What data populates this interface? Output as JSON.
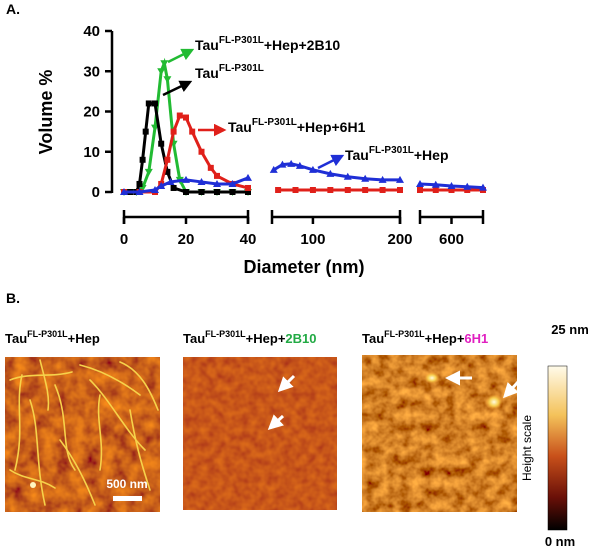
{
  "chart_data": {
    "type": "line",
    "panel_label": "A.",
    "ylabel": "Volume %",
    "xlabel": "Diameter (nm)",
    "ylim": [
      0,
      40
    ],
    "yticks": [
      0,
      10,
      20,
      30,
      40
    ],
    "x_segments": [
      {
        "xlim": [
          0,
          40
        ],
        "xticks": [
          0,
          20,
          40
        ]
      },
      {
        "xlim": [
          53,
          200
        ],
        "xticks": [
          100,
          200
        ]
      },
      {
        "xlim": [
          500,
          700
        ],
        "xticks": [
          600
        ]
      }
    ],
    "series": [
      {
        "name": "Tau",
        "name_sup": "FL-P301L",
        "name_suffix": "+Hep+2B10",
        "color": "#22bb33",
        "marker": "triangle-down",
        "x": [
          0,
          4,
          6,
          8,
          10,
          12,
          13,
          14,
          16,
          18,
          20,
          25,
          30,
          35,
          40
        ],
        "values": [
          0,
          0,
          1,
          5,
          16,
          30,
          32,
          28,
          12,
          3,
          0,
          0,
          0,
          0,
          0
        ]
      },
      {
        "name": "Tau",
        "name_sup": "FL-P301L",
        "name_suffix": "",
        "color": "#000000",
        "marker": "square",
        "x": [
          0,
          2,
          4,
          5,
          6,
          7,
          8,
          10,
          12,
          14,
          16,
          20,
          25,
          30,
          35,
          40
        ],
        "values": [
          0,
          0,
          0,
          2,
          8,
          15,
          22,
          22,
          12,
          5,
          1,
          0,
          0,
          0,
          0,
          0
        ]
      },
      {
        "name": "Tau",
        "name_sup": "FL-P301L",
        "name_suffix": "+Hep+6H1",
        "color": "#e0201a",
        "marker": "square",
        "x": [
          0,
          5,
          10,
          12,
          14,
          16,
          18,
          20,
          22,
          25,
          28,
          30,
          35,
          40,
          60,
          80,
          100,
          120,
          140,
          160,
          180,
          200,
          500,
          550,
          600,
          650,
          700
        ],
        "values": [
          0,
          0,
          0,
          2,
          8,
          15,
          19,
          18.5,
          15,
          10,
          6,
          4,
          2,
          1,
          0.5,
          0.5,
          0.5,
          0.5,
          0.5,
          0.5,
          0.5,
          0.5,
          0.5,
          0.5,
          0.5,
          0.5,
          0.5
        ]
      },
      {
        "name": "Tau",
        "name_sup": "FL-P301L",
        "name_suffix": "+Hep",
        "color": "#1f2fd6",
        "marker": "triangle",
        "x": [
          0,
          5,
          10,
          12,
          15,
          20,
          25,
          30,
          35,
          40,
          55,
          65,
          75,
          85,
          100,
          120,
          140,
          160,
          180,
          200,
          500,
          550,
          600,
          650,
          700
        ],
        "values": [
          0,
          0,
          0.5,
          1.5,
          2.5,
          3,
          2.5,
          2,
          2,
          3.5,
          5.5,
          6.8,
          7,
          6.5,
          5.5,
          4.5,
          3.8,
          3.3,
          3,
          3,
          2,
          1.8,
          1.5,
          1.3,
          1.1
        ]
      }
    ]
  },
  "panel_b": {
    "label": "B.",
    "images": [
      {
        "base": "Tau",
        "sup": "FL-P301L",
        "rest": "+Hep"
      },
      {
        "base": "Tau",
        "sup": "FL-P301L",
        "rest": "+Hep+",
        "highlight": "2B10",
        "highlight_color": "#22aa44"
      },
      {
        "base": "Tau",
        "sup": "FL-P301L",
        "rest": "+Hep+",
        "highlight": "6H1",
        "highlight_color": "#e020c0"
      }
    ],
    "scale_bar": "500 nm",
    "colorbar": {
      "max": "25 nm",
      "min": "0 nm",
      "label": "Height scale"
    }
  }
}
